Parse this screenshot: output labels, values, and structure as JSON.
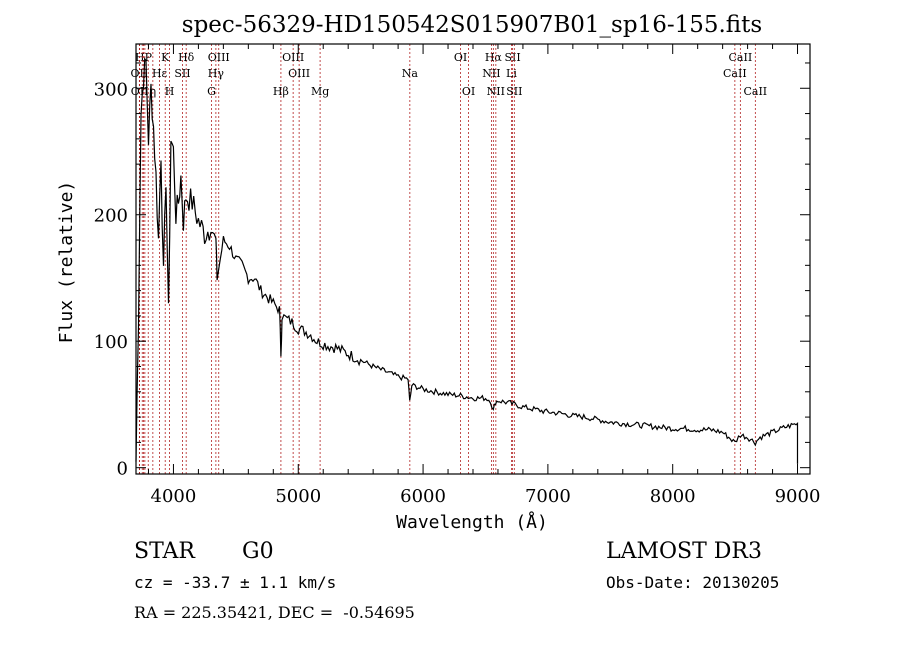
{
  "chart_data": {
    "type": "line",
    "title": "spec-56329-HD150542S015907B01_sp16-155.fits",
    "xlabel": "Wavelength (Å)",
    "ylabel": "Flux (relative)",
    "xlim": [
      3700,
      9100
    ],
    "ylim": [
      -5,
      335
    ],
    "xticks": [
      4000,
      5000,
      6000,
      7000,
      8000,
      9000
    ],
    "yticks": [
      0,
      100,
      200,
      300
    ],
    "grid": false,
    "series": [
      {
        "name": "spectrum",
        "x": [
          3700,
          3720,
          3740,
          3760,
          3780,
          3800,
          3820,
          3840,
          3860,
          3880,
          3900,
          3920,
          3940,
          3960,
          3980,
          4000,
          4020,
          4040,
          4060,
          4080,
          4100,
          4150,
          4200,
          4250,
          4300,
          4340,
          4350,
          4400,
          4450,
          4500,
          4550,
          4600,
          4650,
          4700,
          4750,
          4800,
          4850,
          4861,
          4870,
          4900,
          4950,
          5000,
          5050,
          5100,
          5150,
          5200,
          5250,
          5300,
          5400,
          5500,
          5600,
          5700,
          5800,
          5880,
          5893,
          5910,
          5950,
          6000,
          6100,
          6200,
          6300,
          6400,
          6500,
          6540,
          6563,
          6580,
          6600,
          6700,
          6800,
          6900,
          7000,
          7100,
          7200,
          7300,
          7400,
          7500,
          7600,
          7700,
          7800,
          7900,
          8000,
          8100,
          8200,
          8300,
          8400,
          8498,
          8542,
          8600,
          8662,
          8700,
          8800,
          8900,
          9000
        ],
        "values": [
          5,
          120,
          280,
          310,
          320,
          260,
          300,
          270,
          230,
          180,
          250,
          150,
          230,
          120,
          260,
          250,
          200,
          210,
          230,
          195,
          215,
          210,
          195,
          185,
          190,
          180,
          150,
          180,
          175,
          165,
          160,
          150,
          150,
          140,
          135,
          130,
          125,
          90,
          120,
          118,
          115,
          110,
          108,
          105,
          100,
          98,
          96,
          95,
          90,
          85,
          80,
          76,
          72,
          70,
          52,
          65,
          64,
          62,
          60,
          58,
          57,
          55,
          55,
          53,
          45,
          52,
          53,
          51,
          48,
          46,
          44,
          43,
          41,
          40,
          38,
          36,
          35,
          34,
          33,
          32,
          31,
          31,
          30,
          30,
          28,
          20,
          26,
          24,
          20,
          24,
          28,
          32,
          35
        ]
      }
    ],
    "lines": [
      {
        "label": "Hβ",
        "wave": 4861,
        "row": 3
      },
      {
        "label": "K",
        "wave": 3934,
        "row": 1
      },
      {
        "label": "H",
        "wave": 3969,
        "row": 3
      },
      {
        "label": "Hδ",
        "wave": 4102,
        "row": 1
      },
      {
        "label": "Hγ",
        "wave": 4340,
        "row": 2
      },
      {
        "label": "G",
        "wave": 4305,
        "row": 3
      },
      {
        "label": "OIII",
        "wave": 4363,
        "row": 1
      },
      {
        "label": "OIII",
        "wave": 4959,
        "row": 1
      },
      {
        "label": "OIII",
        "wave": 5007,
        "row": 2
      },
      {
        "label": "Mg",
        "wave": 5175,
        "row": 3
      },
      {
        "label": "Na",
        "wave": 5894,
        "row": 2
      },
      {
        "label": "OI",
        "wave": 6300,
        "row": 1
      },
      {
        "label": "OI",
        "wave": 6364,
        "row": 3
      },
      {
        "label": "Hα",
        "wave": 6563,
        "row": 1
      },
      {
        "label": "NII",
        "wave": 6548,
        "row": 2
      },
      {
        "label": "NII",
        "wave": 6583,
        "row": 3
      },
      {
        "label": "SII",
        "wave": 6717,
        "row": 1
      },
      {
        "label": "Li",
        "wave": 6708,
        "row": 2
      },
      {
        "label": "SII",
        "wave": 6731,
        "row": 3
      },
      {
        "label": "CaII",
        "wave": 8542,
        "row": 1
      },
      {
        "label": "CaII",
        "wave": 8498,
        "row": 2
      },
      {
        "label": "CaII",
        "wave": 8662,
        "row": 3
      },
      {
        "label": "HP",
        "wave": 3760,
        "row": 1
      },
      {
        "label": "OII",
        "wave": 3727,
        "row": 2
      },
      {
        "label": "OII",
        "wave": 3729,
        "row": 3
      },
      {
        "label": "Hε",
        "wave": 3889,
        "row": 2
      },
      {
        "label": "η",
        "wave": 3835,
        "row": 3
      },
      {
        "label": "SII",
        "wave": 4072,
        "row": 2
      },
      {
        "label": "",
        "wave": 3798,
        "row": 0
      },
      {
        "label": "",
        "wave": 3771,
        "row": 0
      },
      {
        "label": "",
        "wave": 3750,
        "row": 0
      }
    ]
  },
  "footer": {
    "class_label": "STAR",
    "subclass": "G0",
    "survey": "LAMOST DR3",
    "cz": "cz = -33.7 ± 1.1 km/s",
    "obs_date": "Obs-Date: 20130205",
    "coords": "RA = 225.35421, DEC =  -0.54695"
  }
}
